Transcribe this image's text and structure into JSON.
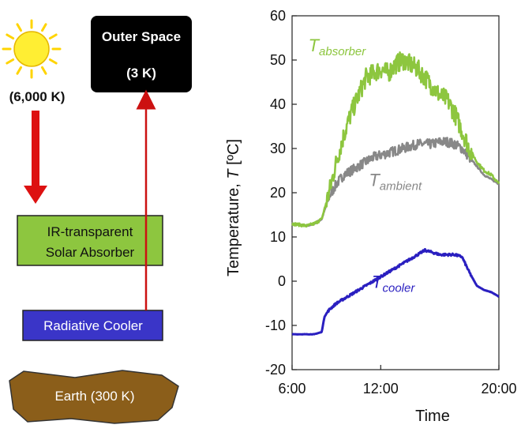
{
  "diagram": {
    "sun_label": "(6,000 K)",
    "space_title": "Outer Space",
    "space_temp": "(3 K)",
    "absorber_line1": "IR-transparent",
    "absorber_line2": "Solar Absorber",
    "cooler_label": "Radiative Cooler",
    "earth_label": "Earth (300 K)",
    "colors": {
      "sun": "#ffee33",
      "sun_arrow": "#dd1111",
      "ir_arrow": "#cc1111",
      "space_box": "#000000",
      "absorber_box": "#8dc63f",
      "cooler_box": "#3a35c8",
      "earth": "#8b5e1a"
    }
  },
  "chart_data": {
    "type": "line",
    "xlabel": "Time",
    "ylabel_prefix": "Temperature, ",
    "ylabel_var": "T",
    "ylabel_unit": " [ºC]",
    "xlim": [
      6,
      20
    ],
    "ylim": [
      -20,
      60
    ],
    "xticks": [
      {
        "value": 6,
        "label": "6:00"
      },
      {
        "value": 12,
        "label": "12:00"
      },
      {
        "value": 20,
        "label": "20:00"
      }
    ],
    "yticks": [
      -20,
      -10,
      0,
      10,
      20,
      30,
      40,
      50,
      60
    ],
    "series": [
      {
        "name": "absorber",
        "label_base": "T",
        "label_sub": "absorber",
        "color": "#8dc63f",
        "noise": 2.2,
        "x": [
          6.0,
          7.0,
          7.5,
          8.0,
          8.5,
          9.0,
          9.5,
          10.0,
          10.5,
          11.0,
          11.5,
          12.0,
          12.5,
          13.0,
          13.5,
          14.0,
          14.5,
          15.0,
          15.5,
          16.0,
          16.5,
          17.0,
          17.5,
          18.0,
          18.5,
          19.0,
          19.5,
          20.0
        ],
        "y": [
          13,
          12.5,
          13,
          14,
          20,
          27,
          33,
          38,
          42,
          46,
          47,
          48,
          47,
          49,
          50,
          49,
          48,
          46,
          44,
          42,
          41,
          38,
          34,
          30,
          27,
          25,
          24,
          22
        ]
      },
      {
        "name": "ambient",
        "label_base": "T",
        "label_sub": "ambient",
        "color": "#888888",
        "noise": 1.1,
        "x": [
          6.0,
          7.0,
          7.5,
          8.0,
          8.5,
          9.0,
          9.5,
          10.0,
          10.5,
          11.0,
          11.5,
          12.0,
          12.5,
          13.0,
          13.5,
          14.0,
          14.5,
          15.0,
          15.5,
          16.0,
          16.5,
          17.0,
          17.5,
          18.0,
          18.5,
          19.0,
          19.5,
          20.0
        ],
        "y": [
          13,
          12.5,
          13,
          14,
          19,
          22,
          24,
          25,
          26,
          27,
          28,
          28.5,
          29,
          29.5,
          30,
          30.5,
          31,
          31,
          31,
          31.5,
          31.5,
          31,
          30,
          28,
          26,
          24,
          23,
          22
        ]
      },
      {
        "name": "cooler",
        "label_base": "T",
        "label_sub": "cooler",
        "color": "#2a1fc0",
        "noise": 0.25,
        "x": [
          6.0,
          6.5,
          7.0,
          7.5,
          8.0,
          8.2,
          8.5,
          9.0,
          9.5,
          10.0,
          10.5,
          11.0,
          11.5,
          12.0,
          12.5,
          13.0,
          13.5,
          14.0,
          14.5,
          15.0,
          15.5,
          16.0,
          16.5,
          17.0,
          17.5,
          18.0,
          18.5,
          19.0,
          19.5,
          20.0
        ],
        "y": [
          -12,
          -12,
          -12,
          -12,
          -11.5,
          -8,
          -6.5,
          -5,
          -4,
          -3,
          -2,
          -1,
          0,
          1,
          2,
          3,
          4,
          5,
          6,
          7,
          6.5,
          6,
          6,
          6,
          5.5,
          2,
          -1,
          -2,
          -2.5,
          -3.5
        ]
      }
    ]
  }
}
